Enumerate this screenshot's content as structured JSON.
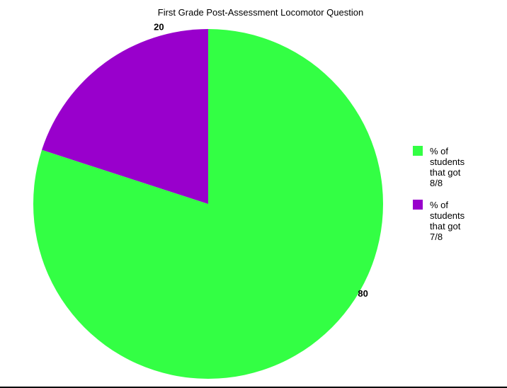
{
  "chart_data": {
    "type": "pie",
    "title": "First Grade Post-Assessment Locomotor Question",
    "slices": [
      {
        "label": "% of students that got 8/8",
        "value": 80,
        "data_label": "80",
        "color": "#33ff44"
      },
      {
        "label": "% of students that got 7/8",
        "value": 20,
        "data_label": "20",
        "color": "#9900cc"
      }
    ],
    "legend": {
      "position": "right",
      "entries": [
        {
          "text": "% of students that got 8/8",
          "color": "#33ff44"
        },
        {
          "text": "% of students that got 7/8",
          "color": "#9900cc"
        }
      ]
    }
  }
}
